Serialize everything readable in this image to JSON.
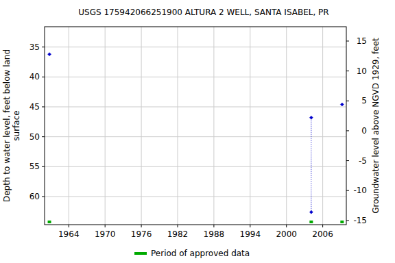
{
  "chart_data": {
    "type": "scatter",
    "title": "USGS 175942066251900 ALTURA 2 WELL, SANTA ISABEL, PR",
    "ylabel": "Depth to water level, feet below land\nsurface",
    "y2label": "Groundwater level above NGVD 1929, feet",
    "x": [
      1960.8,
      null,
      2004.1,
      2004.1,
      null,
      2009.2
    ],
    "series": [
      {
        "color": "#0000cc",
        "marker": "diamond",
        "line_style": "dotted",
        "values": [
          36.2,
          null,
          46.8,
          62.6,
          null,
          44.6
        ]
      }
    ],
    "periods": {
      "name": "Period of approved data",
      "color": "#00aa00",
      "x": [
        1960.8,
        2004.1,
        2009.2
      ]
    },
    "xlim": [
      1960.0,
      2009.9
    ],
    "xticks": [
      1964,
      1970,
      1976,
      1982,
      1988,
      1994,
      2000,
      2006
    ],
    "ylim": [
      31.6,
      64.7
    ],
    "yticks": [
      35,
      40,
      45,
      50,
      55,
      60
    ],
    "y2lim": [
      17.4,
      -15.7
    ],
    "y2ticks": [
      15,
      10,
      5,
      0,
      -5,
      -10,
      -15
    ],
    "grid": true,
    "legend": "bottom"
  }
}
